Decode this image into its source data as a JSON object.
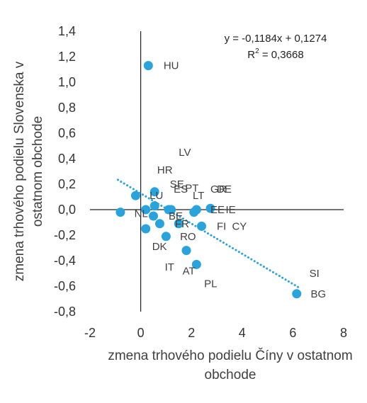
{
  "chart_data": {
    "type": "scatter",
    "xlabel_lines": [
      "zmena trhového podielu Číny v ostatnom",
      "obchode"
    ],
    "ylabel_lines": [
      "zmena trhového podielu Slovenska v",
      "ostatnom obchode"
    ],
    "xlim": [
      -2,
      8
    ],
    "ylim": [
      -0.8,
      1.4
    ],
    "x_ticks": [
      "-2",
      "0",
      "2",
      "4",
      "6",
      "8"
    ],
    "y_ticks": [
      "1,4",
      "1,2",
      "1,0",
      "0,8",
      "0,6",
      "0,4",
      "0,2",
      "0,0",
      "-0,2",
      "-0,4",
      "-0,6",
      "-0,8"
    ],
    "x_tick_values": [
      -2,
      0,
      2,
      4,
      6,
      8
    ],
    "y_tick_values": [
      1.4,
      1.2,
      1.0,
      0.8,
      0.6,
      0.4,
      0.2,
      0.0,
      -0.2,
      -0.4,
      -0.6,
      -0.8
    ],
    "trendline": {
      "equation": "y = -0,1184x + 0,1274",
      "r2_prefix": "R",
      "r2_sup": "2",
      "r2_suffix": " = 0,3668",
      "slope": -0.1184,
      "intercept": 0.1274,
      "x_range": [
        -0.9,
        6.2
      ]
    },
    "points": [
      {
        "x": 0.3,
        "y": 1.13
      },
      {
        "x": -0.2,
        "y": 0.11
      },
      {
        "x": 0.55,
        "y": 0.14
      },
      {
        "x": -0.8,
        "y": -0.02
      },
      {
        "x": 0.2,
        "y": 0.0
      },
      {
        "x": 0.55,
        "y": 0.03
      },
      {
        "x": 0.5,
        "y": -0.05
      },
      {
        "x": 1.1,
        "y": 0.0
      },
      {
        "x": 1.2,
        "y": 0.0
      },
      {
        "x": 2.1,
        "y": -0.02
      },
      {
        "x": 2.2,
        "y": 0.0
      },
      {
        "x": 2.75,
        "y": 0.01
      },
      {
        "x": 0.2,
        "y": -0.15
      },
      {
        "x": 0.75,
        "y": -0.11
      },
      {
        "x": 1.5,
        "y": -0.11
      },
      {
        "x": 2.4,
        "y": -0.13
      },
      {
        "x": 1.0,
        "y": -0.21
      },
      {
        "x": 1.8,
        "y": -0.32
      },
      {
        "x": 2.2,
        "y": -0.43
      },
      {
        "x": 6.15,
        "y": -0.66
      }
    ],
    "labels": [
      {
        "text": "HU",
        "x": 0.9,
        "y": 1.13
      },
      {
        "text": "LV",
        "x": 1.5,
        "y": 0.45
      },
      {
        "text": "HR",
        "x": 0.65,
        "y": 0.31
      },
      {
        "text": "SE",
        "x": 1.15,
        "y": 0.2
      },
      {
        "text": "ES",
        "x": 1.3,
        "y": 0.16
      },
      {
        "text": "PT",
        "x": 1.75,
        "y": 0.17
      },
      {
        "text": "GR",
        "x": 2.75,
        "y": 0.16
      },
      {
        "text": "DE",
        "x": 3.0,
        "y": 0.16
      },
      {
        "text": "LU",
        "x": 0.35,
        "y": 0.11
      },
      {
        "text": "LT",
        "x": 2.05,
        "y": 0.11
      },
      {
        "text": "EE",
        "x": 2.75,
        "y": 0.0
      },
      {
        "text": "IE",
        "x": 3.35,
        "y": 0.0
      },
      {
        "text": "NL",
        "x": -0.25,
        "y": -0.03
      },
      {
        "text": "BE",
        "x": 1.1,
        "y": -0.05
      },
      {
        "text": "FR",
        "x": 1.35,
        "y": -0.11
      },
      {
        "text": "FI",
        "x": 3.0,
        "y": -0.13
      },
      {
        "text": "CY",
        "x": 3.6,
        "y": -0.13
      },
      {
        "text": "RO",
        "x": 1.55,
        "y": -0.21
      },
      {
        "text": "DK",
        "x": 0.45,
        "y": -0.29
      },
      {
        "text": "IT",
        "x": 0.95,
        "y": -0.45
      },
      {
        "text": "AT",
        "x": 1.65,
        "y": -0.48
      },
      {
        "text": "PL",
        "x": 2.5,
        "y": -0.58
      },
      {
        "text": "SI",
        "x": 6.65,
        "y": -0.5
      },
      {
        "text": "BG",
        "x": 6.7,
        "y": -0.66
      }
    ],
    "colors": {
      "point": "#29a3dc",
      "trendline": "#29a3dc",
      "axis": "#222222"
    }
  }
}
